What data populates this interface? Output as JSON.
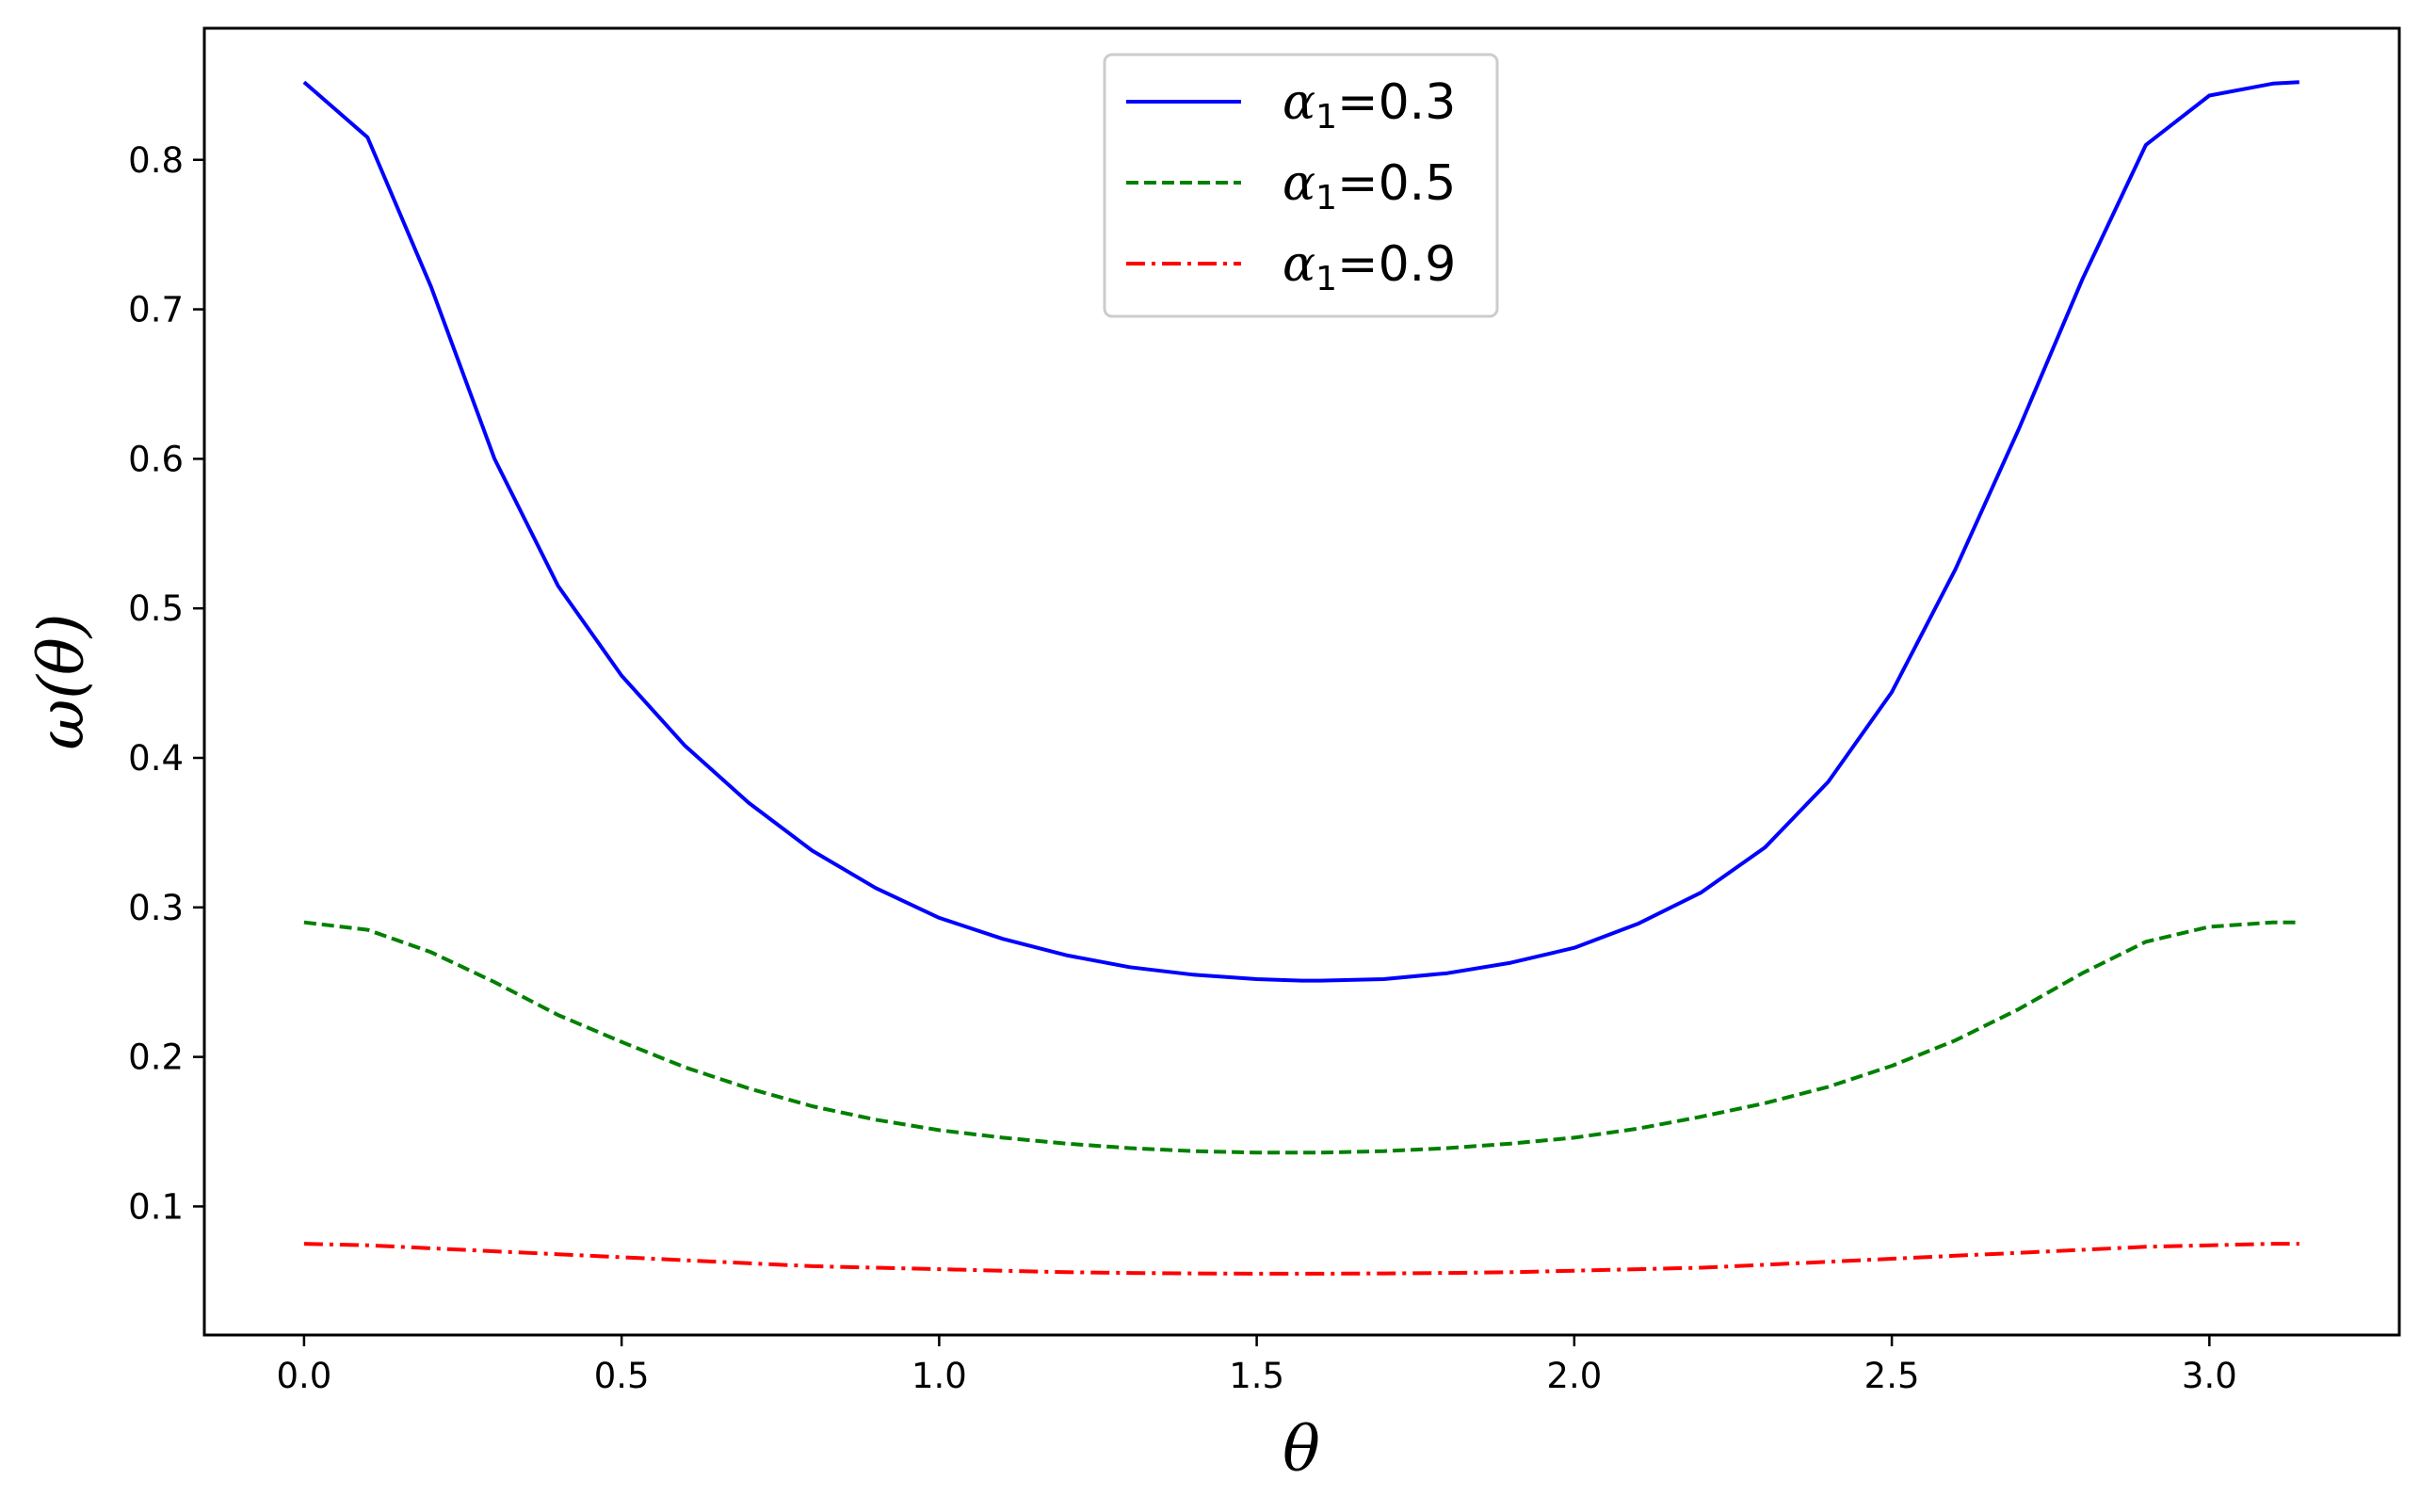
{
  "chart_data": {
    "type": "line",
    "xlabel": "θ",
    "ylabel": "ω(θ)",
    "xlim": [
      -0.157,
      3.299
    ],
    "ylim": [
      0.014,
      0.888
    ],
    "xticks": [
      0.0,
      0.5,
      1.0,
      1.5,
      2.0,
      2.5,
      3.0
    ],
    "xtick_labels": [
      "0.0",
      "0.5",
      "1.0",
      "1.5",
      "2.0",
      "2.5",
      "3.0"
    ],
    "yticks": [
      0.1,
      0.2,
      0.3,
      0.4,
      0.5,
      0.6,
      0.7,
      0.8
    ],
    "ytick_labels": [
      "0.1",
      "0.2",
      "0.3",
      "0.4",
      "0.5",
      "0.6",
      "0.7",
      "0.8"
    ],
    "grid": false,
    "legend_position": "top-center",
    "x": [
      0.0,
      0.1,
      0.2,
      0.3,
      0.4,
      0.5,
      0.6,
      0.7,
      0.8,
      0.9,
      1.0,
      1.1,
      1.2,
      1.3,
      1.4,
      1.5,
      1.5708,
      1.6,
      1.7,
      1.8,
      1.9,
      2.0,
      2.1,
      2.2,
      2.3,
      2.4,
      2.5,
      2.6,
      2.7,
      2.8,
      2.9,
      3.0,
      3.1,
      3.1416
    ],
    "series": [
      {
        "name_symbol": "α",
        "name_sub": "1",
        "name_value": "=0.3",
        "color": "#0000ff",
        "dash": "solid",
        "values": [
          0.852,
          0.815,
          0.715,
          0.6,
          0.515,
          0.455,
          0.408,
          0.37,
          0.338,
          0.313,
          0.293,
          0.279,
          0.268,
          0.26,
          0.255,
          0.252,
          0.251,
          0.251,
          0.252,
          0.256,
          0.263,
          0.273,
          0.289,
          0.31,
          0.34,
          0.384,
          0.444,
          0.526,
          0.62,
          0.72,
          0.81,
          0.843,
          0.851,
          0.852
        ]
      },
      {
        "name_symbol": "α",
        "name_sub": "1",
        "name_value": "=0.5",
        "color": "#008000",
        "dash": "dashed",
        "values": [
          0.29,
          0.285,
          0.27,
          0.25,
          0.228,
          0.21,
          0.193,
          0.179,
          0.167,
          0.158,
          0.151,
          0.146,
          0.142,
          0.139,
          0.137,
          0.136,
          0.136,
          0.136,
          0.137,
          0.139,
          0.142,
          0.146,
          0.152,
          0.16,
          0.169,
          0.18,
          0.194,
          0.211,
          0.232,
          0.256,
          0.277,
          0.287,
          0.29,
          0.29
        ]
      },
      {
        "name_symbol": "α",
        "name_sub": "1",
        "name_value": "=0.9",
        "color": "#ff0000",
        "dash": "dashdot",
        "values": [
          0.075,
          0.074,
          0.072,
          0.07,
          0.068,
          0.066,
          0.064,
          0.062,
          0.06,
          0.059,
          0.058,
          0.057,
          0.056,
          0.0555,
          0.0552,
          0.055,
          0.055,
          0.055,
          0.0552,
          0.0555,
          0.056,
          0.057,
          0.058,
          0.059,
          0.061,
          0.063,
          0.065,
          0.067,
          0.069,
          0.071,
          0.073,
          0.074,
          0.075,
          0.075
        ]
      }
    ]
  }
}
